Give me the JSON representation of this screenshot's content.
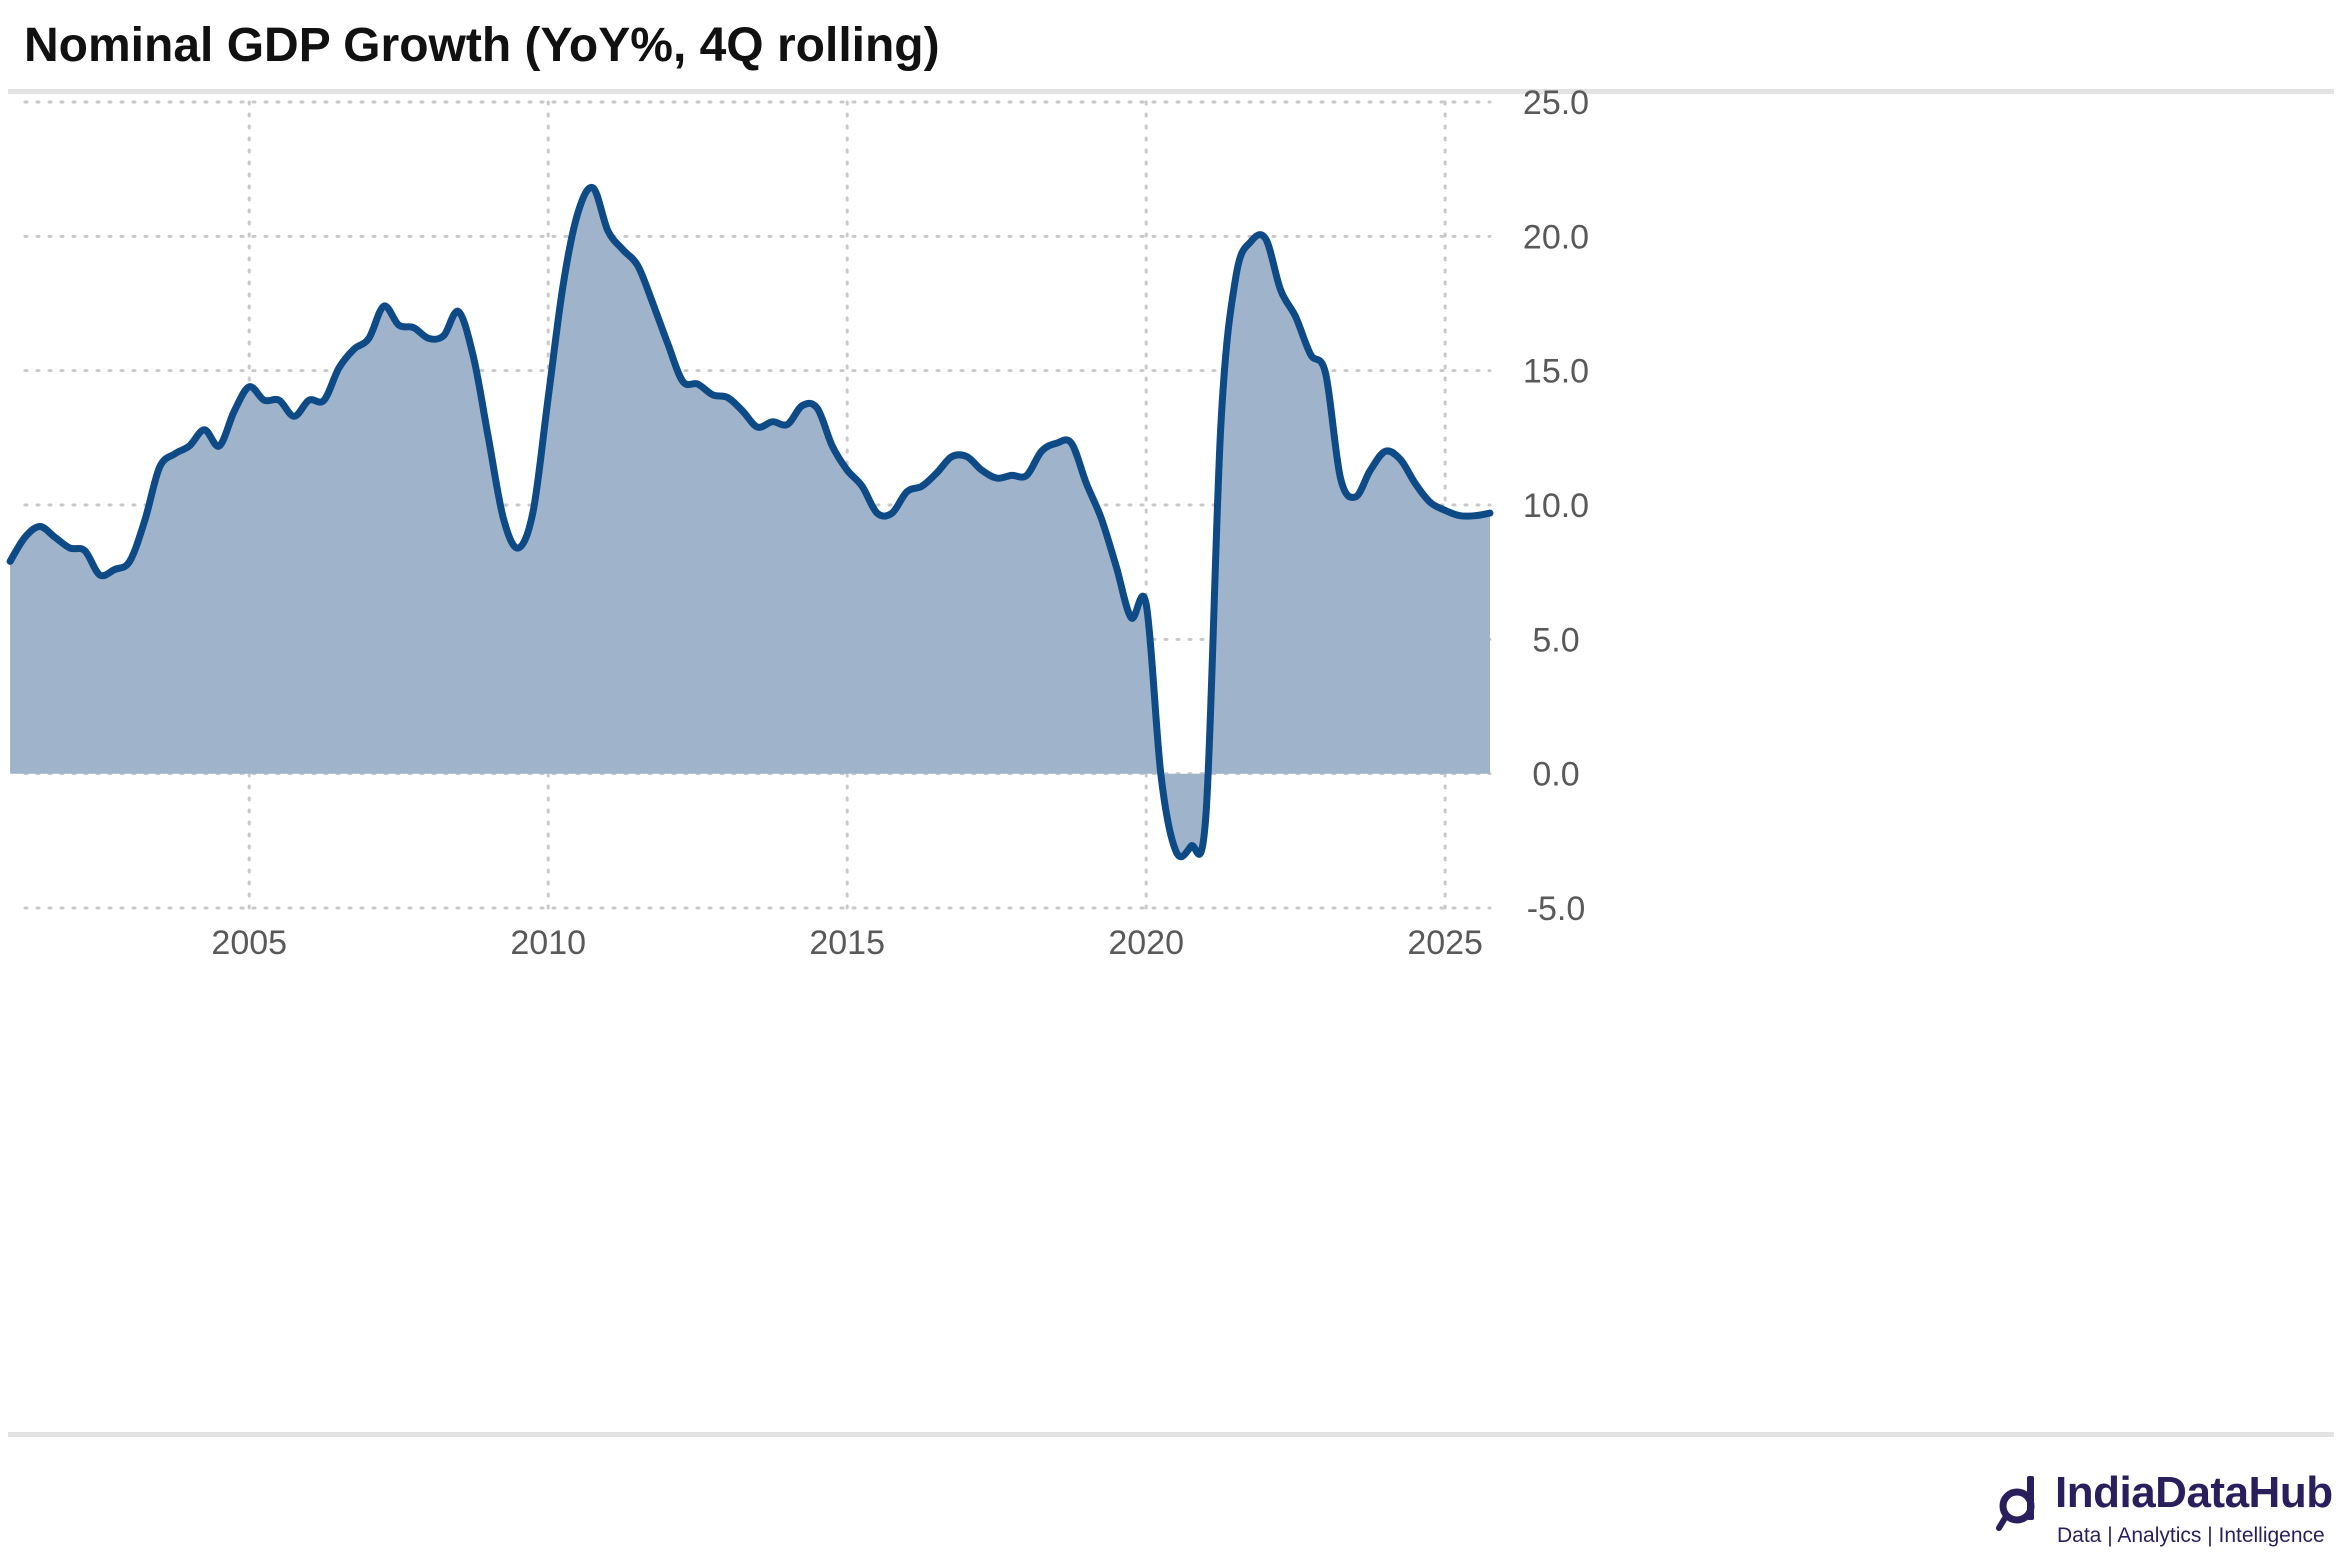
{
  "title": "Nominal GDP Growth (YoY%, 4Q rolling)",
  "brand": {
    "name": "IndiaDataHub",
    "tagline": "Data | Analytics | Intelligence"
  },
  "colors": {
    "line": "#0e4a86",
    "area": "#9fb3cb",
    "grid": "#c9c9c9",
    "axis_text": "#595959"
  },
  "chart_data": {
    "type": "area",
    "title": "Nominal GDP Growth (YoY%, 4Q rolling)",
    "xlabel": "",
    "ylabel": "",
    "xlim": [
      2001.25,
      2025.75
    ],
    "ylim": [
      -5,
      25
    ],
    "y_ticks": [
      25,
      20,
      15,
      10,
      5,
      0,
      -5
    ],
    "y_tick_labels": [
      "25.0",
      "20.0",
      "15.0",
      "10.0",
      "5.0",
      "0.0",
      "-5.0"
    ],
    "x_ticks": [
      2005,
      2010,
      2015,
      2020,
      2025
    ],
    "x_tick_labels": [
      "2005",
      "2010",
      "2015",
      "2020",
      "2025"
    ],
    "y_axis_position": "right",
    "grid": "dotted",
    "series": [
      {
        "name": "Nominal GDP Growth (YoY%, 4Q rolling)",
        "x": [
          2001.0,
          2001.25,
          2001.5,
          2001.75,
          2002.0,
          2002.25,
          2002.5,
          2002.75,
          2003.0,
          2003.25,
          2003.5,
          2003.75,
          2004.0,
          2004.25,
          2004.5,
          2004.75,
          2005.0,
          2005.25,
          2005.5,
          2005.75,
          2006.0,
          2006.25,
          2006.5,
          2006.75,
          2007.0,
          2007.25,
          2007.5,
          2007.75,
          2008.0,
          2008.25,
          2008.5,
          2008.75,
          2009.0,
          2009.25,
          2009.5,
          2009.75,
          2010.0,
          2010.25,
          2010.5,
          2010.75,
          2011.0,
          2011.25,
          2011.5,
          2011.75,
          2012.0,
          2012.25,
          2012.5,
          2012.75,
          2013.0,
          2013.25,
          2013.5,
          2013.75,
          2014.0,
          2014.25,
          2014.5,
          2014.75,
          2015.0,
          2015.25,
          2015.5,
          2015.75,
          2016.0,
          2016.25,
          2016.5,
          2016.75,
          2017.0,
          2017.25,
          2017.5,
          2017.75,
          2018.0,
          2018.25,
          2018.5,
          2018.75,
          2019.0,
          2019.25,
          2019.5,
          2019.75,
          2020.0,
          2020.25,
          2020.5,
          2020.75,
          2021.0,
          2021.25,
          2021.5,
          2021.75,
          2022.0,
          2022.25,
          2022.5,
          2022.75,
          2023.0,
          2023.25,
          2023.5,
          2023.75,
          2024.0,
          2024.25,
          2024.5,
          2024.75,
          2025.0,
          2025.25,
          2025.5,
          2025.75
        ],
        "values": [
          7.9,
          8.8,
          9.2,
          8.8,
          8.4,
          8.3,
          7.4,
          7.6,
          7.9,
          9.4,
          11.4,
          11.9,
          12.2,
          12.8,
          12.2,
          13.5,
          14.4,
          13.9,
          13.9,
          13.3,
          13.9,
          13.9,
          15.1,
          15.8,
          16.2,
          17.4,
          16.7,
          16.6,
          16.2,
          16.3,
          17.2,
          15.5,
          12.5,
          9.5,
          8.4,
          9.8,
          14.0,
          18.2,
          20.9,
          21.8,
          20.2,
          19.5,
          18.9,
          17.5,
          16.0,
          14.6,
          14.5,
          14.1,
          14.0,
          13.5,
          12.9,
          13.1,
          13.0,
          13.7,
          13.6,
          12.2,
          11.3,
          10.7,
          9.7,
          9.7,
          10.5,
          10.7,
          11.2,
          11.8,
          11.8,
          11.3,
          11.0,
          11.1,
          11.1,
          12.0,
          12.3,
          12.3,
          10.8,
          9.5,
          7.7,
          5.8,
          6.3,
          -0.1,
          -2.9,
          -2.7,
          -1.5,
          13.0,
          18.5,
          19.8,
          19.9,
          18.0,
          17.0,
          15.6,
          14.9,
          11.0,
          10.3,
          11.3,
          12.0,
          11.7,
          10.8,
          10.1,
          9.8,
          9.6,
          9.6,
          9.7
        ]
      }
    ]
  }
}
